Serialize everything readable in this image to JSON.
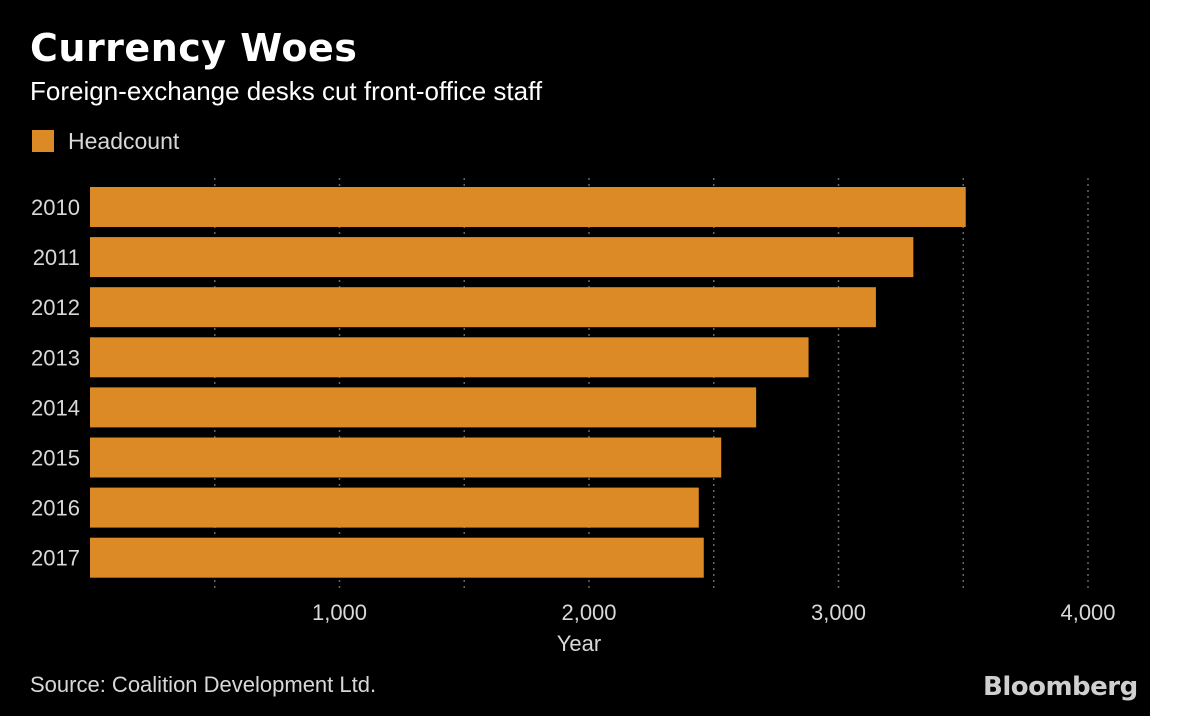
{
  "header": {
    "title": "Currency Woes",
    "subtitle": "Foreign-exchange desks cut front-office staff"
  },
  "footer": {
    "source": "Source: Coalition Development Ltd.",
    "logo": "Bloomberg"
  },
  "colors": {
    "background": "#000000",
    "bar": "#dc8a25",
    "grid": "#666666",
    "text": "#d8d8d8"
  },
  "chart_data": {
    "type": "bar",
    "orientation": "horizontal",
    "categories": [
      "2010",
      "2011",
      "2012",
      "2013",
      "2014",
      "2015",
      "2016",
      "2017"
    ],
    "series": [
      {
        "name": "Headcount",
        "values": [
          3510,
          3300,
          3150,
          2880,
          2670,
          2530,
          2440,
          2460
        ]
      }
    ],
    "xlabel": "Year",
    "xlim": [
      0,
      4000
    ],
    "xticks": [
      {
        "value": 1000,
        "label": "1,000"
      },
      {
        "value": 2000,
        "label": "2,000"
      },
      {
        "value": 3000,
        "label": "3,000"
      },
      {
        "value": 4000,
        "label": "4,000"
      }
    ],
    "gridlines": [
      500,
      1000,
      1500,
      2000,
      2500,
      3000,
      3500,
      4000
    ],
    "grid": true,
    "legend_position": "top-left"
  }
}
